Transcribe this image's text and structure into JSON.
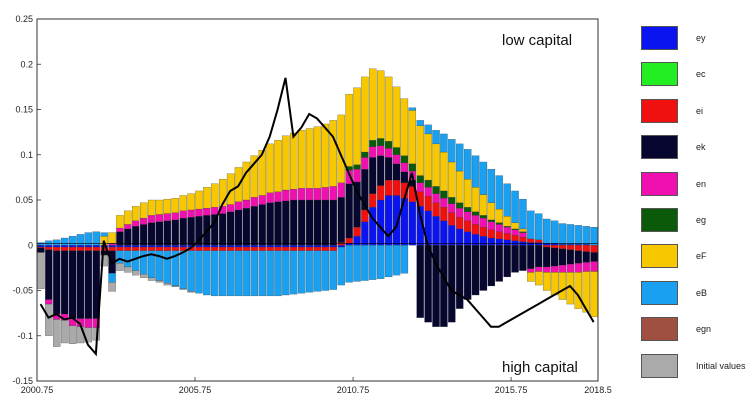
{
  "chart_data": {
    "type": "bar",
    "stacked": true,
    "x_start": 2000.75,
    "x_step": 0.25,
    "xlim": [
      2000.75,
      2018.5
    ],
    "ylim": [
      -0.15,
      0.25
    ],
    "x_ticks": [
      "2000.75",
      "2005.75",
      "2010.75",
      "2015.75",
      "2018.5"
    ],
    "y_ticks": [
      "-0.15",
      "-0.1",
      "-0.05",
      "0",
      "0.05",
      "0.1",
      "0.15",
      "0.2",
      "0.25"
    ],
    "grid": false,
    "legend_placement": "right",
    "annotations": {
      "top": "low capital",
      "bottom": "high capital"
    },
    "series": [
      {
        "name": "ey",
        "color": "#0a14f0",
        "values": [
          -0.002,
          -0.002,
          -0.002,
          -0.002,
          -0.002,
          -0.002,
          -0.002,
          -0.002,
          -0.002,
          -0.002,
          -0.002,
          -0.002,
          -0.002,
          -0.002,
          -0.002,
          -0.002,
          -0.002,
          -0.002,
          -0.002,
          -0.002,
          -0.002,
          -0.002,
          -0.002,
          -0.002,
          -0.002,
          -0.002,
          -0.002,
          -0.002,
          -0.002,
          -0.002,
          -0.002,
          -0.002,
          -0.002,
          -0.002,
          -0.002,
          -0.002,
          -0.002,
          -0.002,
          -0.002,
          0.002,
          0.01,
          0.026,
          0.042,
          0.05,
          0.055,
          0.055,
          0.052,
          0.048,
          0.043,
          0.038,
          0.032,
          0.027,
          0.022,
          0.018,
          0.015,
          0.012,
          0.01,
          0.008,
          0.007,
          0.006,
          0.005,
          0.004,
          0.003,
          0.003,
          0.002,
          0.002,
          0.001,
          0.001,
          0.001,
          0.001,
          0.0
        ]
      },
      {
        "name": "ec",
        "color": "#22ee22",
        "values": [
          0.0,
          0.0,
          0.0,
          0.0,
          0.0,
          0.0,
          0.0,
          0.0,
          0.0,
          0.0,
          0.0,
          0.0,
          0.0,
          0.0,
          0.0,
          0.0,
          0.0,
          0.0,
          0.0,
          0.0,
          0.0,
          0.0,
          0.0,
          0.0,
          0.0,
          0.0,
          0.0,
          0.0,
          0.0,
          0.0,
          0.0,
          0.0,
          0.0,
          0.0,
          0.0,
          0.0,
          0.0,
          0.0,
          0.0,
          0.0,
          0.0,
          0.0,
          0.0,
          0.0,
          0.0,
          0.0,
          0.0,
          0.0,
          0.0,
          0.0,
          0.0,
          0.0,
          0.0,
          0.0,
          0.0,
          0.0,
          0.0,
          0.0,
          0.0,
          0.0,
          0.0,
          0.0,
          0.0,
          0.0,
          0.0,
          0.0,
          0.0,
          0.0,
          0.0,
          0.0,
          0.0
        ]
      },
      {
        "name": "ei",
        "color": "#f01010",
        "values": [
          -0.001,
          -0.003,
          -0.004,
          -0.004,
          -0.004,
          -0.004,
          -0.004,
          -0.004,
          -0.004,
          -0.004,
          -0.004,
          -0.004,
          -0.004,
          -0.004,
          -0.004,
          -0.004,
          -0.004,
          -0.004,
          -0.004,
          -0.004,
          -0.004,
          -0.004,
          -0.004,
          -0.004,
          -0.004,
          -0.004,
          -0.004,
          -0.004,
          -0.004,
          -0.004,
          -0.004,
          -0.004,
          -0.004,
          -0.004,
          -0.004,
          -0.004,
          -0.004,
          -0.004,
          0.003,
          0.006,
          0.01,
          0.013,
          0.015,
          0.016,
          0.017,
          0.017,
          0.017,
          0.017,
          0.016,
          0.016,
          0.015,
          0.015,
          0.014,
          0.013,
          0.012,
          0.011,
          0.01,
          0.009,
          0.008,
          0.007,
          0.006,
          0.005,
          0.004,
          0.003,
          -0.002,
          -0.003,
          -0.004,
          -0.005,
          -0.006,
          -0.007,
          -0.008
        ]
      },
      {
        "name": "ek",
        "color": "#06062e",
        "values": [
          -0.005,
          -0.055,
          -0.07,
          -0.07,
          -0.075,
          -0.075,
          -0.075,
          -0.075,
          -0.005,
          -0.025,
          0.015,
          0.018,
          0.021,
          0.023,
          0.025,
          0.026,
          0.027,
          0.028,
          0.03,
          0.031,
          0.032,
          0.033,
          0.034,
          0.035,
          0.037,
          0.039,
          0.041,
          0.043,
          0.045,
          0.047,
          0.048,
          0.049,
          0.05,
          0.05,
          0.05,
          0.05,
          0.05,
          0.05,
          0.05,
          0.06,
          0.05,
          0.045,
          0.04,
          0.033,
          0.025,
          0.018,
          0.012,
          0.007,
          -0.08,
          -0.085,
          -0.09,
          -0.09,
          -0.085,
          -0.07,
          -0.06,
          -0.055,
          -0.05,
          -0.045,
          -0.04,
          -0.035,
          -0.03,
          -0.028,
          -0.026,
          -0.024,
          -0.022,
          -0.02,
          -0.018,
          -0.016,
          -0.014,
          -0.012,
          -0.01
        ]
      },
      {
        "name": "en",
        "color": "#f010b0",
        "values": [
          0.0,
          -0.005,
          -0.006,
          -0.007,
          -0.008,
          -0.009,
          -0.01,
          -0.01,
          0.0,
          0.002,
          0.004,
          0.005,
          0.006,
          0.007,
          0.008,
          0.008,
          0.008,
          0.008,
          0.008,
          0.008,
          0.008,
          0.008,
          0.008,
          0.008,
          0.008,
          0.009,
          0.009,
          0.01,
          0.01,
          0.011,
          0.011,
          0.012,
          0.012,
          0.013,
          0.013,
          0.013,
          0.014,
          0.015,
          0.016,
          0.015,
          0.014,
          0.013,
          0.012,
          0.011,
          0.01,
          0.01,
          0.01,
          0.01,
          0.01,
          0.01,
          0.01,
          0.01,
          0.01,
          0.01,
          0.01,
          0.01,
          0.01,
          0.009,
          0.008,
          0.007,
          0.006,
          0.005,
          -0.004,
          -0.005,
          -0.006,
          -0.007,
          -0.008,
          -0.009,
          -0.01,
          -0.01,
          -0.011
        ]
      },
      {
        "name": "eg",
        "color": "#0a5a0a",
        "values": [
          0.0,
          0.0,
          0.0,
          0.0,
          0.0,
          0.0,
          0.0,
          0.0,
          0.0,
          0.0,
          0.0,
          0.0,
          0.0,
          0.0,
          0.0,
          0.0,
          0.0,
          0.0,
          0.0,
          0.0,
          0.0,
          0.0,
          0.0,
          0.0,
          0.0,
          0.0,
          0.0,
          0.0,
          0.0,
          0.0,
          0.0,
          0.0,
          0.0,
          0.0,
          0.0,
          0.0,
          0.0,
          0.0,
          0.0,
          0.004,
          0.005,
          0.006,
          0.007,
          0.008,
          0.008,
          0.008,
          0.008,
          0.008,
          0.008,
          0.008,
          0.008,
          0.008,
          0.007,
          0.006,
          0.005,
          0.004,
          0.003,
          0.002,
          0.002,
          0.001,
          0.001,
          0.001,
          0.0,
          0.0,
          0.0,
          0.0,
          0.0,
          0.0,
          0.0,
          0.0,
          0.0
        ]
      },
      {
        "name": "eF",
        "color": "#f7c800",
        "values": [
          0.0,
          0.0,
          0.0,
          0.0,
          0.0,
          0.0,
          0.0,
          0.0,
          0.01,
          0.012,
          0.014,
          0.015,
          0.016,
          0.017,
          0.017,
          0.016,
          0.016,
          0.016,
          0.017,
          0.018,
          0.02,
          0.023,
          0.026,
          0.03,
          0.034,
          0.038,
          0.042,
          0.046,
          0.05,
          0.054,
          0.057,
          0.06,
          0.062,
          0.064,
          0.066,
          0.068,
          0.07,
          0.073,
          0.075,
          0.08,
          0.085,
          0.083,
          0.079,
          0.075,
          0.071,
          0.067,
          0.063,
          0.059,
          0.055,
          0.051,
          0.047,
          0.043,
          0.039,
          0.035,
          0.031,
          0.027,
          0.023,
          0.019,
          0.015,
          0.011,
          0.007,
          0.003,
          -0.01,
          -0.015,
          -0.02,
          -0.025,
          -0.03,
          -0.035,
          -0.04,
          -0.045,
          -0.05
        ]
      },
      {
        "name": "eB",
        "color": "#1aa0f0",
        "values": [
          0.003,
          0.005,
          0.006,
          0.008,
          0.01,
          0.012,
          0.014,
          0.015,
          0.004,
          -0.01,
          -0.014,
          -0.018,
          -0.022,
          -0.026,
          -0.03,
          -0.033,
          -0.036,
          -0.039,
          -0.042,
          -0.045,
          -0.047,
          -0.049,
          -0.05,
          -0.05,
          -0.05,
          -0.05,
          -0.05,
          -0.05,
          -0.05,
          -0.05,
          -0.05,
          -0.049,
          -0.048,
          -0.047,
          -0.046,
          -0.045,
          -0.044,
          -0.043,
          -0.042,
          -0.041,
          -0.04,
          -0.039,
          -0.038,
          -0.037,
          -0.035,
          -0.033,
          -0.031,
          0.003,
          0.006,
          0.01,
          0.015,
          0.02,
          0.025,
          0.03,
          0.033,
          0.035,
          0.036,
          0.037,
          0.037,
          0.036,
          0.035,
          0.033,
          0.031,
          0.029,
          0.027,
          0.025,
          0.023,
          0.022,
          0.021,
          0.02,
          0.02
        ]
      },
      {
        "name": "egn",
        "color": "#a05040",
        "values": [
          0.0,
          0.0,
          0.0,
          0.0,
          0.0,
          0.0,
          0.0,
          0.0,
          0.0,
          0.0,
          0.0,
          0.0,
          0.0,
          0.0,
          0.0,
          0.0,
          0.0,
          0.0,
          0.0,
          0.0,
          0.0,
          0.0,
          0.0,
          0.0,
          0.0,
          0.0,
          0.0,
          0.0,
          0.0,
          0.0,
          0.0,
          0.0,
          0.0,
          0.0,
          0.0,
          0.0,
          0.0,
          0.0,
          0.0,
          0.0,
          0.0,
          0.0,
          0.0,
          0.0,
          0.0,
          0.0,
          0.0,
          0.0,
          0.0,
          0.0,
          0.0,
          0.0,
          0.0,
          0.0,
          0.0,
          0.0,
          0.0,
          0.0,
          0.0,
          0.0,
          0.0,
          0.0,
          0.0,
          0.0,
          0.0,
          0.0,
          0.0,
          0.0,
          0.0,
          0.0,
          0.0
        ]
      },
      {
        "name": "Initial values",
        "color": "#aaaaaa",
        "values": [
          -0.04,
          -0.035,
          -0.03,
          -0.025,
          -0.02,
          -0.018,
          -0.016,
          -0.014,
          -0.012,
          -0.01,
          -0.008,
          -0.006,
          -0.005,
          -0.004,
          -0.003,
          -0.002,
          -0.002,
          -0.001,
          -0.001,
          -0.001,
          0.0,
          0.0,
          0.0,
          0.0,
          0.0,
          0.0,
          0.0,
          0.0,
          0.0,
          0.0,
          0.0,
          0.0,
          0.0,
          0.0,
          0.0,
          0.0,
          0.0,
          0.0,
          0.0,
          0.0,
          0.0,
          0.0,
          0.0,
          0.0,
          0.0,
          0.0,
          0.0,
          0.0,
          0.0,
          0.0,
          0.0,
          0.0,
          0.0,
          0.0,
          0.0,
          0.0,
          0.0,
          0.0,
          0.0,
          0.0,
          0.0,
          0.0,
          0.0,
          0.0,
          0.0,
          0.0,
          0.0,
          0.0,
          0.0,
          0.0,
          0.0
        ]
      }
    ],
    "line_series": {
      "color": "#000000",
      "values": [
        -0.065,
        -0.08,
        -0.076,
        -0.082,
        -0.08,
        -0.087,
        -0.11,
        -0.12,
        0.005,
        -0.02,
        -0.015,
        -0.018,
        -0.015,
        -0.012,
        -0.01,
        -0.012,
        -0.015,
        -0.012,
        -0.008,
        -0.003,
        0.005,
        0.015,
        0.025,
        0.045,
        0.06,
        0.065,
        0.08,
        0.09,
        0.1,
        0.12,
        0.15,
        0.185,
        0.12,
        0.13,
        0.145,
        0.14,
        0.13,
        0.12,
        0.1,
        0.08,
        0.06,
        0.045,
        0.03,
        0.02,
        0.01,
        0.02,
        0.05,
        0.08,
        0.035,
        0.0,
        -0.02,
        -0.035,
        -0.05,
        -0.055,
        -0.06,
        -0.07,
        -0.08,
        -0.09,
        -0.09,
        -0.085,
        -0.08,
        -0.075,
        -0.07,
        -0.065,
        -0.06,
        -0.055,
        -0.05,
        -0.045,
        -0.055,
        -0.07,
        -0.085
      ]
    }
  }
}
